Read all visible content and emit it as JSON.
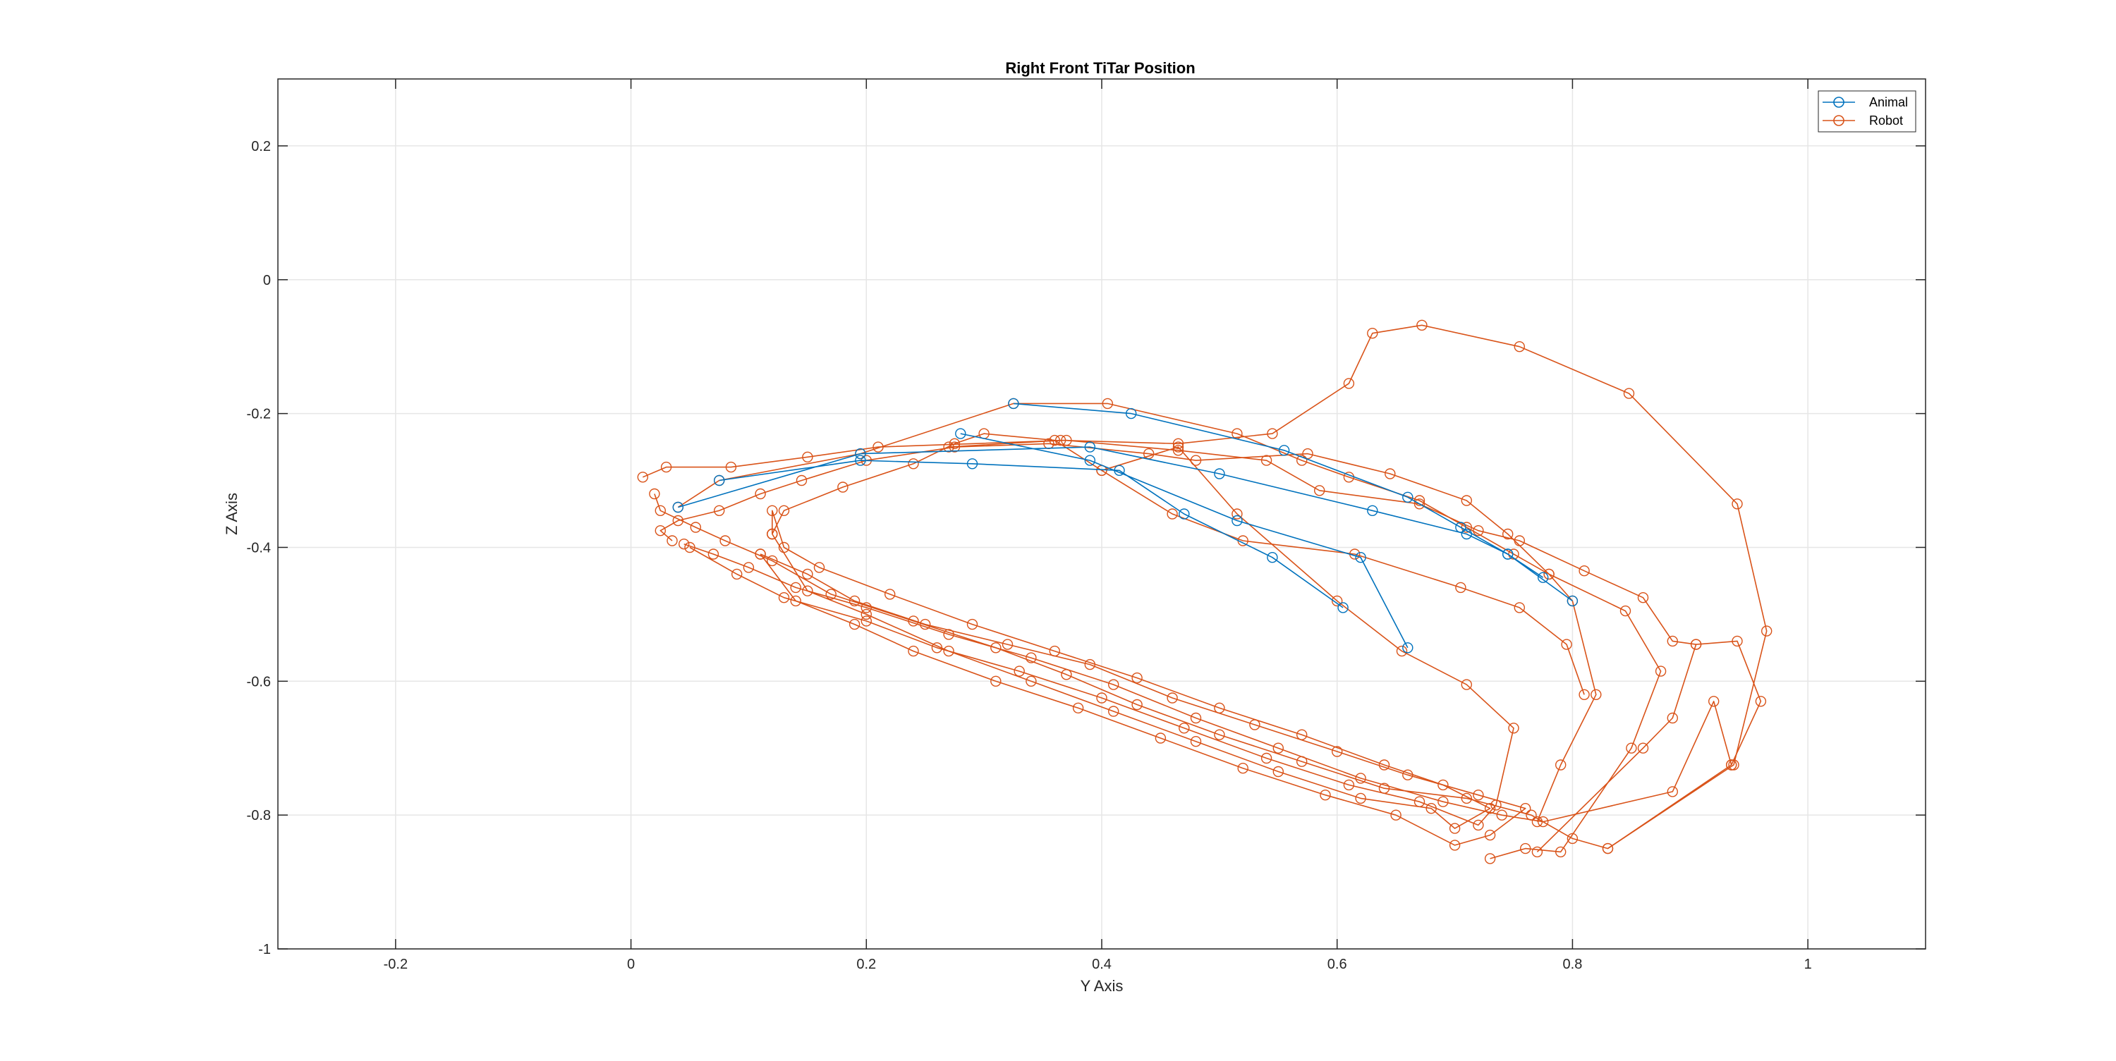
{
  "colors": {
    "animal": "#0072BD",
    "robot": "#D95319",
    "axes": "#262626",
    "grid": "#E6E6E6"
  },
  "chart_data": {
    "type": "line",
    "title": "Right Front TiTar Position",
    "xlabel": "Y Axis",
    "ylabel": "Z Axis",
    "xlim": [
      -0.3,
      1.1
    ],
    "ylim": [
      -1,
      0.3
    ],
    "xticks": [
      -0.2,
      0,
      0.2,
      0.4,
      0.6,
      0.8,
      1
    ],
    "yticks": [
      -1,
      -0.8,
      -0.6,
      -0.4,
      -0.2,
      0,
      0.2
    ],
    "xtick_labels": [
      "-0.2",
      "0",
      "0.2",
      "0.4",
      "0.6",
      "0.8",
      "1"
    ],
    "ytick_labels": [
      "-1",
      "-0.8",
      "-0.6",
      "-0.4",
      "-0.2",
      "0",
      "0.2"
    ],
    "grid": true,
    "box": true,
    "marker": "circle",
    "legend_position": "top-right",
    "legend": [
      "Animal",
      "Robot"
    ],
    "series": [
      {
        "name": "Animal",
        "color": "#0072BD",
        "segments": [
          [
            [
              0.075,
              -0.3
            ],
            [
              0.195,
              -0.27
            ],
            [
              0.29,
              -0.275
            ],
            [
              0.415,
              -0.285
            ],
            [
              0.47,
              -0.35
            ],
            [
              0.545,
              -0.415
            ],
            [
              0.605,
              -0.49
            ]
          ],
          [
            [
              0.04,
              -0.34
            ],
            [
              0.195,
              -0.26
            ],
            [
              0.39,
              -0.25
            ],
            [
              0.5,
              -0.29
            ],
            [
              0.63,
              -0.345
            ],
            [
              0.71,
              -0.38
            ],
            [
              0.745,
              -0.41
            ],
            [
              0.775,
              -0.445
            ]
          ],
          [
            [
              0.325,
              -0.185
            ],
            [
              0.425,
              -0.2
            ],
            [
              0.555,
              -0.255
            ],
            [
              0.66,
              -0.325
            ],
            [
              0.705,
              -0.37
            ],
            [
              0.745,
              -0.41
            ],
            [
              0.8,
              -0.48
            ]
          ],
          [
            [
              0.28,
              -0.23
            ],
            [
              0.39,
              -0.27
            ],
            [
              0.515,
              -0.36
            ],
            [
              0.62,
              -0.415
            ],
            [
              0.66,
              -0.55
            ]
          ]
        ]
      },
      {
        "name": "Robot",
        "color": "#D95319",
        "segments": [
          [
            [
              0.04,
              -0.34
            ],
            [
              0.075,
              -0.3
            ],
            [
              0.195,
              -0.26
            ],
            [
              0.325,
              -0.185
            ],
            [
              0.405,
              -0.185
            ],
            [
              0.515,
              -0.23
            ],
            [
              0.57,
              -0.27
            ],
            [
              0.61,
              -0.295
            ],
            [
              0.67,
              -0.33
            ],
            [
              0.71,
              -0.37
            ],
            [
              0.75,
              -0.41
            ],
            [
              0.78,
              -0.44
            ],
            [
              0.8,
              -0.48
            ],
            [
              0.82,
              -0.62
            ],
            [
              0.79,
              -0.725
            ],
            [
              0.77,
              -0.81
            ]
          ],
          [
            [
              0.27,
              -0.25
            ],
            [
              0.365,
              -0.24
            ],
            [
              0.465,
              -0.245
            ],
            [
              0.545,
              -0.23
            ],
            [
              0.61,
              -0.155
            ],
            [
              0.63,
              -0.08
            ],
            [
              0.672,
              -0.068
            ],
            [
              0.755,
              -0.1
            ],
            [
              0.848,
              -0.17
            ],
            [
              0.94,
              -0.335
            ],
            [
              0.965,
              -0.525
            ],
            [
              0.937,
              -0.725
            ],
            [
              0.83,
              -0.85
            ]
          ],
          [
            [
              0.01,
              -0.295
            ],
            [
              0.03,
              -0.28
            ],
            [
              0.085,
              -0.28
            ],
            [
              0.15,
              -0.265
            ],
            [
              0.21,
              -0.25
            ],
            [
              0.37,
              -0.24
            ],
            [
              0.465,
              -0.255
            ],
            [
              0.54,
              -0.27
            ],
            [
              0.585,
              -0.315
            ],
            [
              0.67,
              -0.335
            ],
            [
              0.72,
              -0.375
            ],
            [
              0.755,
              -0.39
            ],
            [
              0.81,
              -0.435
            ],
            [
              0.86,
              -0.475
            ],
            [
              0.885,
              -0.54
            ],
            [
              0.905,
              -0.545
            ],
            [
              0.885,
              -0.655
            ],
            [
              0.86,
              -0.7
            ],
            [
              0.77,
              -0.855
            ]
          ],
          [
            [
              0.035,
              -0.39
            ],
            [
              0.025,
              -0.375
            ],
            [
              0.04,
              -0.36
            ],
            [
              0.075,
              -0.345
            ],
            [
              0.11,
              -0.32
            ],
            [
              0.145,
              -0.3
            ],
            [
              0.2,
              -0.27
            ],
            [
              0.275,
              -0.25
            ],
            [
              0.355,
              -0.245
            ],
            [
              0.44,
              -0.26
            ],
            [
              0.48,
              -0.27
            ],
            [
              0.575,
              -0.26
            ],
            [
              0.645,
              -0.29
            ],
            [
              0.71,
              -0.33
            ],
            [
              0.745,
              -0.38
            ],
            [
              0.78,
              -0.44
            ],
            [
              0.845,
              -0.495
            ],
            [
              0.875,
              -0.585
            ],
            [
              0.85,
              -0.7
            ],
            [
              0.79,
              -0.855
            ],
            [
              0.76,
              -0.85
            ],
            [
              0.73,
              -0.865
            ]
          ],
          [
            [
              0.02,
              -0.32
            ],
            [
              0.025,
              -0.345
            ],
            [
              0.055,
              -0.37
            ],
            [
              0.08,
              -0.39
            ],
            [
              0.12,
              -0.42
            ],
            [
              0.17,
              -0.47
            ],
            [
              0.24,
              -0.51
            ],
            [
              0.31,
              -0.55
            ],
            [
              0.37,
              -0.59
            ],
            [
              0.43,
              -0.635
            ],
            [
              0.5,
              -0.68
            ],
            [
              0.57,
              -0.72
            ],
            [
              0.64,
              -0.76
            ],
            [
              0.71,
              -0.775
            ],
            [
              0.765,
              -0.8
            ],
            [
              0.8,
              -0.835
            ],
            [
              0.83,
              -0.85
            ],
            [
              0.935,
              -0.725
            ],
            [
              0.96,
              -0.63
            ],
            [
              0.94,
              -0.54
            ],
            [
              0.905,
              -0.545
            ]
          ],
          [
            [
              0.045,
              -0.395
            ],
            [
              0.07,
              -0.41
            ],
            [
              0.1,
              -0.43
            ],
            [
              0.14,
              -0.46
            ],
            [
              0.2,
              -0.49
            ],
            [
              0.27,
              -0.53
            ],
            [
              0.34,
              -0.565
            ],
            [
              0.41,
              -0.605
            ],
            [
              0.48,
              -0.655
            ],
            [
              0.55,
              -0.7
            ],
            [
              0.62,
              -0.745
            ],
            [
              0.69,
              -0.78
            ],
            [
              0.74,
              -0.8
            ],
            [
              0.775,
              -0.81
            ],
            [
              0.885,
              -0.765
            ],
            [
              0.92,
              -0.63
            ],
            [
              0.935,
              -0.725
            ]
          ],
          [
            [
              0.05,
              -0.4
            ],
            [
              0.09,
              -0.44
            ],
            [
              0.13,
              -0.475
            ],
            [
              0.2,
              -0.51
            ],
            [
              0.26,
              -0.55
            ],
            [
              0.33,
              -0.585
            ],
            [
              0.4,
              -0.625
            ],
            [
              0.47,
              -0.67
            ],
            [
              0.54,
              -0.715
            ],
            [
              0.61,
              -0.755
            ],
            [
              0.67,
              -0.78
            ],
            [
              0.72,
              -0.815
            ],
            [
              0.735,
              -0.785
            ],
            [
              0.75,
              -0.67
            ],
            [
              0.71,
              -0.605
            ],
            [
              0.655,
              -0.555
            ],
            [
              0.6,
              -0.48
            ],
            [
              0.515,
              -0.35
            ],
            [
              0.465,
              -0.25
            ],
            [
              0.4,
              -0.285
            ]
          ],
          [
            [
              0.12,
              -0.38
            ],
            [
              0.12,
              -0.345
            ],
            [
              0.13,
              -0.4
            ],
            [
              0.16,
              -0.43
            ],
            [
              0.22,
              -0.47
            ],
            [
              0.29,
              -0.515
            ],
            [
              0.36,
              -0.555
            ],
            [
              0.43,
              -0.595
            ],
            [
              0.5,
              -0.64
            ],
            [
              0.57,
              -0.68
            ],
            [
              0.64,
              -0.725
            ],
            [
              0.69,
              -0.755
            ],
            [
              0.73,
              -0.79
            ],
            [
              0.7,
              -0.82
            ],
            [
              0.68,
              -0.79
            ],
            [
              0.62,
              -0.775
            ],
            [
              0.55,
              -0.735
            ],
            [
              0.48,
              -0.69
            ],
            [
              0.41,
              -0.645
            ],
            [
              0.34,
              -0.6
            ],
            [
              0.27,
              -0.555
            ],
            [
              0.2,
              -0.5
            ],
            [
              0.15,
              -0.465
            ],
            [
              0.12,
              -0.38
            ]
          ],
          [
            [
              0.12,
              -0.38
            ],
            [
              0.13,
              -0.345
            ],
            [
              0.18,
              -0.31
            ],
            [
              0.24,
              -0.275
            ],
            [
              0.275,
              -0.245
            ],
            [
              0.3,
              -0.23
            ],
            [
              0.36,
              -0.24
            ],
            [
              0.4,
              -0.285
            ],
            [
              0.46,
              -0.35
            ],
            [
              0.52,
              -0.39
            ],
            [
              0.615,
              -0.41
            ],
            [
              0.705,
              -0.46
            ],
            [
              0.755,
              -0.49
            ],
            [
              0.795,
              -0.545
            ],
            [
              0.81,
              -0.62
            ]
          ],
          [
            [
              0.11,
              -0.41
            ],
            [
              0.15,
              -0.44
            ],
            [
              0.19,
              -0.48
            ],
            [
              0.25,
              -0.515
            ],
            [
              0.32,
              -0.545
            ],
            [
              0.39,
              -0.575
            ],
            [
              0.46,
              -0.625
            ],
            [
              0.53,
              -0.665
            ],
            [
              0.6,
              -0.705
            ],
            [
              0.66,
              -0.74
            ],
            [
              0.72,
              -0.77
            ],
            [
              0.76,
              -0.79
            ],
            [
              0.73,
              -0.83
            ],
            [
              0.7,
              -0.845
            ],
            [
              0.65,
              -0.8
            ],
            [
              0.59,
              -0.77
            ],
            [
              0.52,
              -0.73
            ],
            [
              0.45,
              -0.685
            ],
            [
              0.38,
              -0.64
            ],
            [
              0.31,
              -0.6
            ],
            [
              0.24,
              -0.555
            ],
            [
              0.19,
              -0.515
            ],
            [
              0.14,
              -0.48
            ],
            [
              0.11,
              -0.41
            ]
          ]
        ]
      }
    ]
  }
}
